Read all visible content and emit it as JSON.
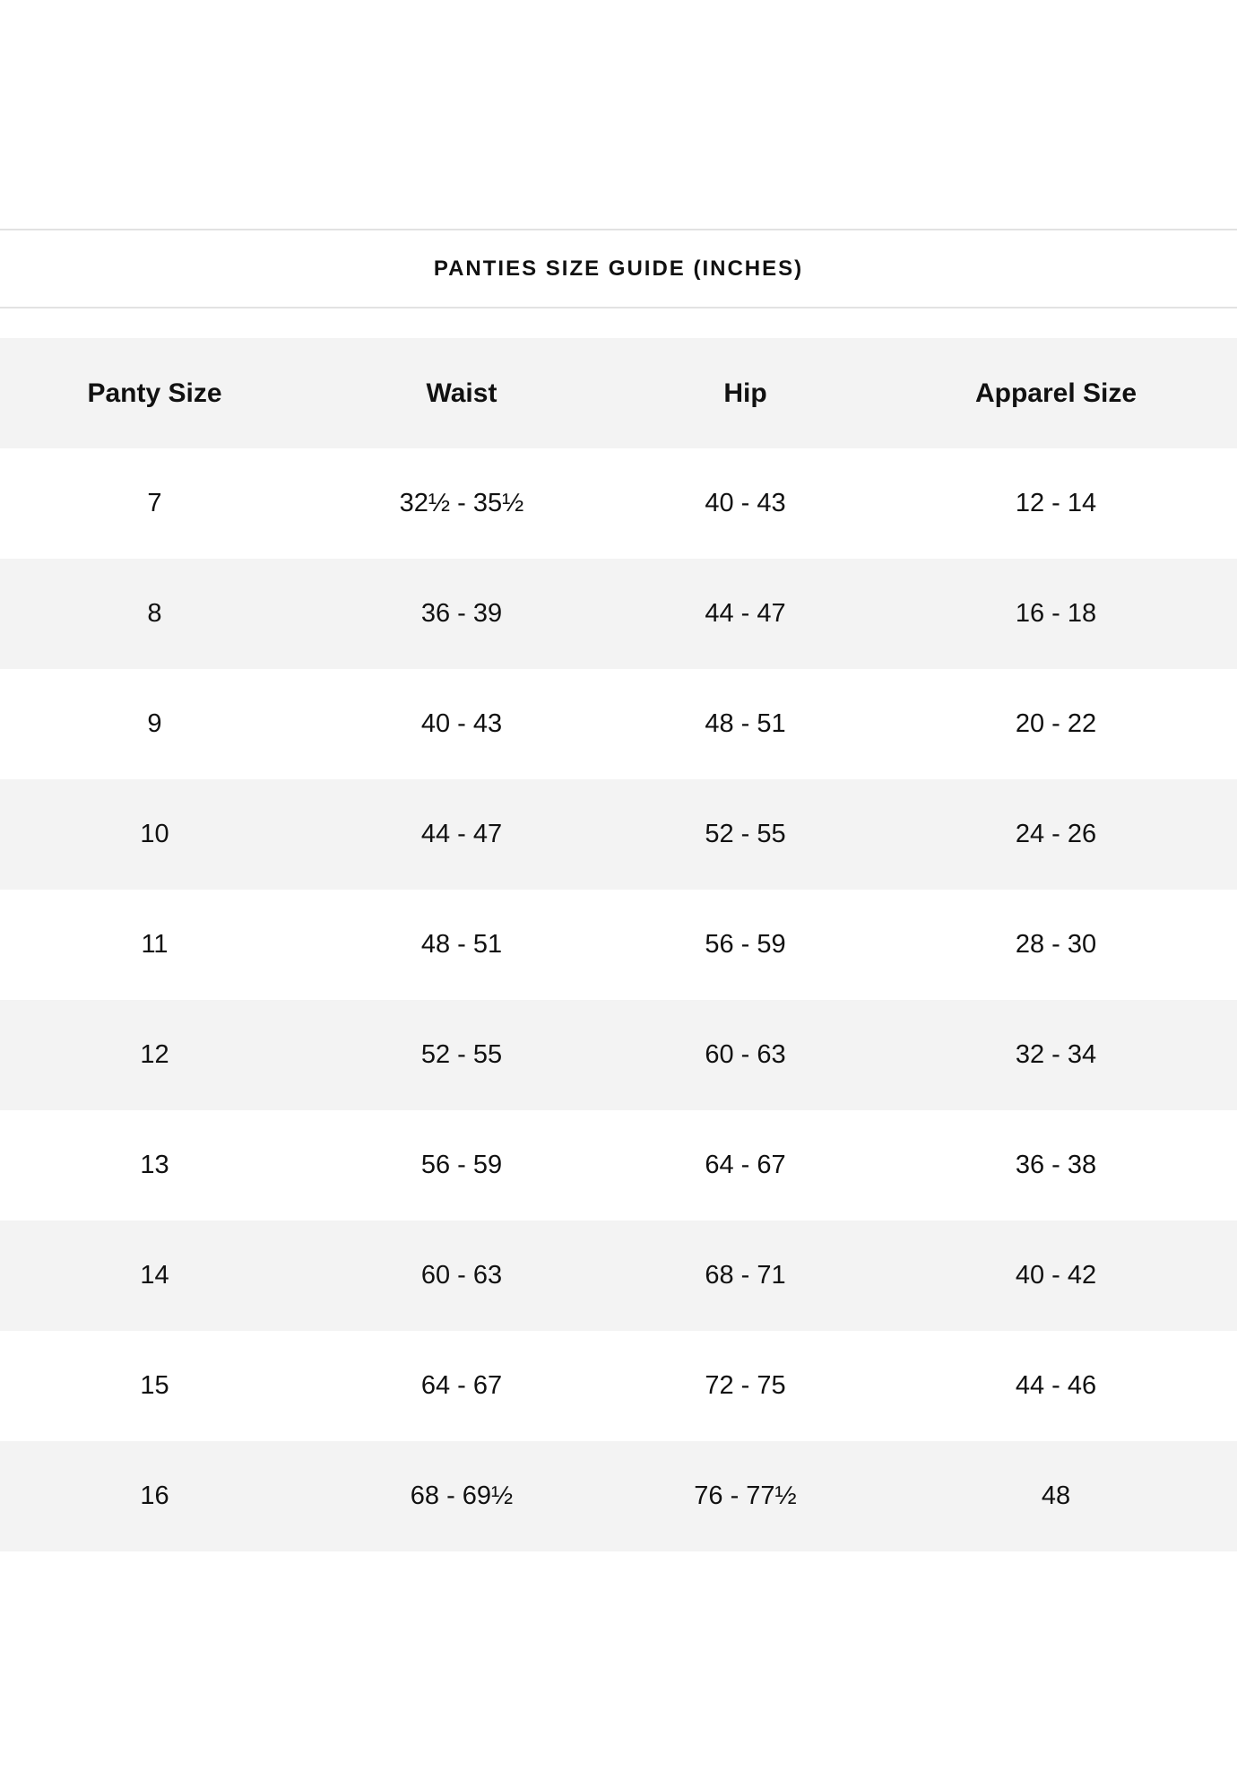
{
  "title": "PANTIES SIZE GUIDE (INCHES)",
  "table": {
    "headers": [
      "Panty Size",
      "Waist",
      "Hip",
      "Apparel Size"
    ],
    "rows": [
      [
        "7",
        "32½ - 35½",
        "40 - 43",
        "12 - 14"
      ],
      [
        "8",
        "36 - 39",
        "44 - 47",
        "16 - 18"
      ],
      [
        "9",
        "40 - 43",
        "48 - 51",
        "20 - 22"
      ],
      [
        "10",
        "44 - 47",
        "52 - 55",
        "24 - 26"
      ],
      [
        "11",
        "48 - 51",
        "56 - 59",
        "28 - 30"
      ],
      [
        "12",
        "52 - 55",
        "60 - 63",
        "32 - 34"
      ],
      [
        "13",
        "56 - 59",
        "64 - 67",
        "36 - 38"
      ],
      [
        "14",
        "60 - 63",
        "68 - 71",
        "40 - 42"
      ],
      [
        "15",
        "64 - 67",
        "72 - 75",
        "44 - 46"
      ],
      [
        "16",
        "68 - 69½",
        "76 - 77½",
        "48"
      ]
    ]
  },
  "colors": {
    "row_shade": "#f3f3f3",
    "divider": "#e2e2e2",
    "text": "#111111"
  }
}
